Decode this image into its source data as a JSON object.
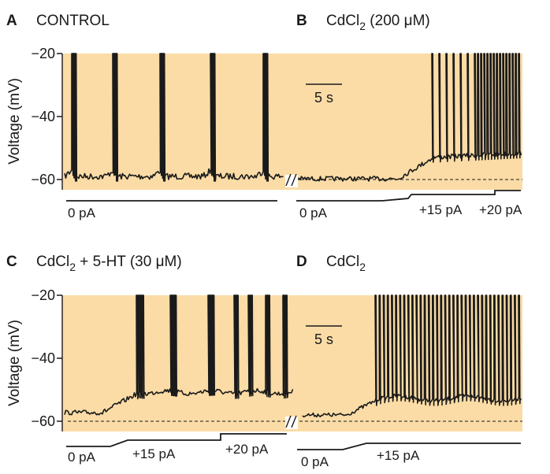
{
  "panels": {
    "A": {
      "letter": "A",
      "title": "CONTROL"
    },
    "B": {
      "letter": "B",
      "title_prefix": "CdCl",
      "title_sub": "2",
      "title_suffix": " (200 μM)"
    },
    "C": {
      "letter": "C",
      "title_prefix": "CdCl",
      "title_sub": "2",
      "title_suffix": " + 5-HT (30 μM)"
    },
    "D": {
      "letter": "D",
      "title_prefix": "CdCl",
      "title_sub": "2"
    }
  },
  "axis": {
    "ylabel": "Voltage (mV)",
    "ticks": [
      "−20",
      "−40",
      "−60"
    ]
  },
  "scale_bar_label": "5 s",
  "currents": {
    "A": [
      "0 pA"
    ],
    "B": [
      "0 pA",
      "+15 pA",
      "+20 pA"
    ],
    "C": [
      "0 pA",
      "+15 pA",
      "+20 pA"
    ],
    "D": [
      "0 pA",
      "+15 pA"
    ]
  },
  "chart_data": {
    "type": "line",
    "y_unit": "mV",
    "ylim": [
      -62,
      -20
    ],
    "baseline_mV": -60,
    "traces": {
      "A": {
        "condition": "CONTROL",
        "current_steps_pA": [
          0
        ],
        "spike_bursts": 5
      },
      "B": {
        "condition": "CdCl2 (200 μM)",
        "current_steps_pA": [
          0,
          15,
          20
        ]
      },
      "C": {
        "condition": "CdCl2 + 5-HT (30 μM)",
        "current_steps_pA": [
          0,
          15,
          20
        ]
      },
      "D": {
        "condition": "CdCl2",
        "current_steps_pA": [
          0,
          15
        ]
      }
    },
    "colors": {
      "background": "#fbdca6",
      "trace": "#1a1a1a"
    }
  }
}
